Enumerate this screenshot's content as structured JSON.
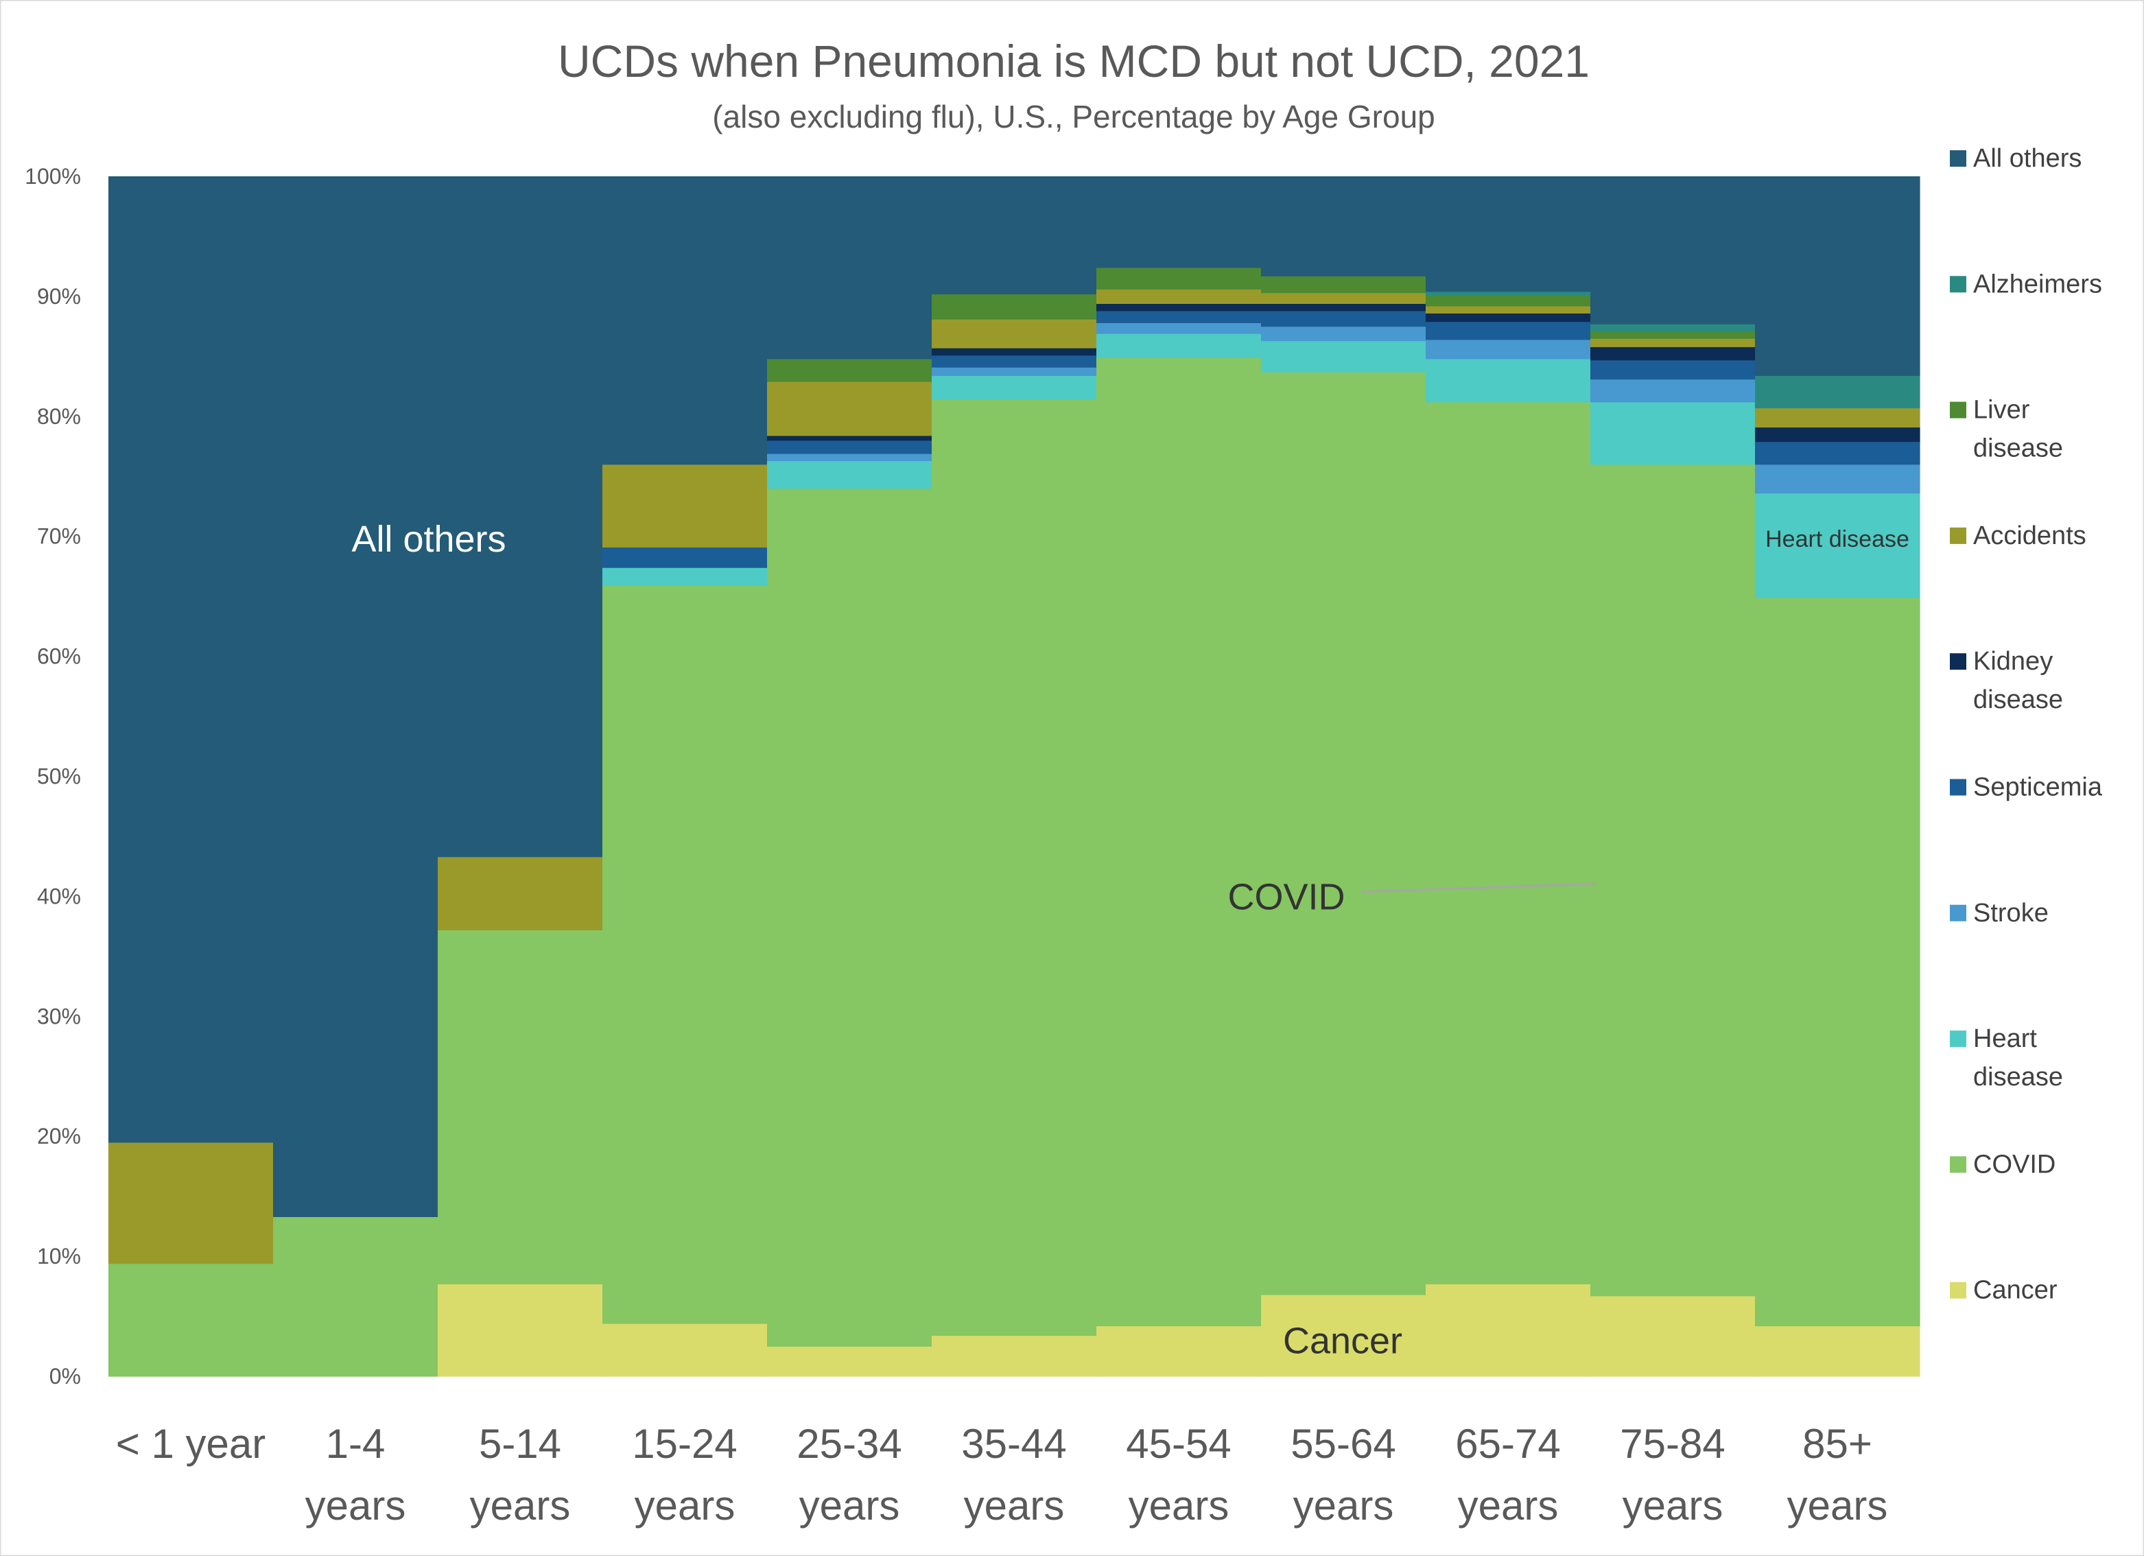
{
  "chart_data": {
    "type": "bar",
    "stacked": true,
    "title": "UCDs when Pneumonia is MCD but not UCD, 2021",
    "subtitle": "(also excluding flu), U.S., Percentage by Age Group",
    "ylim": [
      0,
      100
    ],
    "yticks": [
      "0%",
      "10%",
      "20%",
      "30%",
      "40%",
      "50%",
      "60%",
      "70%",
      "80%",
      "90%",
      "100%"
    ],
    "categories": [
      [
        "< 1 year"
      ],
      [
        "1-4",
        "years"
      ],
      [
        "5-14",
        "years"
      ],
      [
        "15-24",
        "years"
      ],
      [
        "25-34",
        "years"
      ],
      [
        "35-44",
        "years"
      ],
      [
        "45-54",
        "years"
      ],
      [
        "55-64",
        "years"
      ],
      [
        "65-74",
        "years"
      ],
      [
        "75-84",
        "years"
      ],
      [
        "85+",
        "years"
      ]
    ],
    "series": [
      {
        "name": "Cancer",
        "legend": [
          "Cancer"
        ],
        "color": "#d9dc6b",
        "values": [
          0,
          0,
          7.7,
          4.4,
          2.5,
          3.4,
          4.2,
          6.8,
          7.7,
          6.7,
          4.2
        ]
      },
      {
        "name": "COVID",
        "legend": [
          "COVID"
        ],
        "color": "#86c663",
        "values": [
          9.4,
          13.3,
          29.5,
          61.5,
          71.5,
          78.0,
          80.7,
          76.9,
          73.5,
          69.3,
          60.7
        ]
      },
      {
        "name": "Heart disease",
        "legend": [
          "Heart",
          "disease"
        ],
        "color": "#4ecbc4",
        "values": [
          0,
          0,
          0,
          1.5,
          2.3,
          2.0,
          2.0,
          2.6,
          3.6,
          5.2,
          8.7
        ]
      },
      {
        "name": "Stroke",
        "legend": [
          "Stroke"
        ],
        "color": "#4899cf",
        "values": [
          0,
          0,
          0,
          0,
          0.6,
          0.7,
          0.9,
          1.2,
          1.6,
          1.9,
          2.4
        ]
      },
      {
        "name": "Septicemia",
        "legend": [
          "Septicemia"
        ],
        "color": "#1b5d96",
        "values": [
          0,
          0,
          0,
          1.7,
          1.1,
          1.0,
          1.0,
          1.3,
          1.5,
          1.6,
          1.9
        ]
      },
      {
        "name": "Kidney disease",
        "legend": [
          "Kidney",
          "disease"
        ],
        "color": "#0c2b55",
        "values": [
          0,
          0,
          0,
          0,
          0.4,
          0.6,
          0.6,
          0.6,
          0.7,
          1.1,
          1.2
        ]
      },
      {
        "name": "Accidents",
        "legend": [
          "Accidents"
        ],
        "color": "#9a9a2b",
        "values": [
          10.1,
          0,
          6.1,
          6.9,
          4.5,
          2.4,
          1.2,
          0.9,
          0.6,
          0.7,
          1.6
        ]
      },
      {
        "name": "Liver disease",
        "legend": [
          "Liver",
          "disease"
        ],
        "color": "#4d8a31",
        "values": [
          0,
          0,
          0,
          0,
          1.9,
          2.1,
          1.8,
          1.4,
          0.9,
          0.6,
          0
        ]
      },
      {
        "name": "Alzheimers",
        "legend": [
          "Alzheimers"
        ],
        "color": "#2a8a82",
        "values": [
          0,
          0,
          0,
          0,
          0,
          0,
          0,
          0,
          0.3,
          0.6,
          2.7
        ]
      },
      {
        "name": "All others",
        "legend": [
          "All others"
        ],
        "color": "#245b78",
        "values": [
          80.5,
          86.7,
          56.7,
          24.0,
          15.2,
          9.8,
          7.6,
          8.3,
          9.6,
          12.3,
          16.6
        ]
      }
    ],
    "annotations": [
      {
        "text": "All others",
        "category_index": 2,
        "y": 69.8,
        "color": "#ffffff"
      },
      {
        "text": "COVID",
        "category_index": 7,
        "y": 40.0,
        "color": "#333333"
      },
      {
        "text": "Cancer",
        "category_index": 7,
        "y": 3.0,
        "color": "#333333"
      },
      {
        "text": "Heart disease",
        "category_index": 10,
        "y": 69.8,
        "color": "#333333"
      }
    ]
  }
}
